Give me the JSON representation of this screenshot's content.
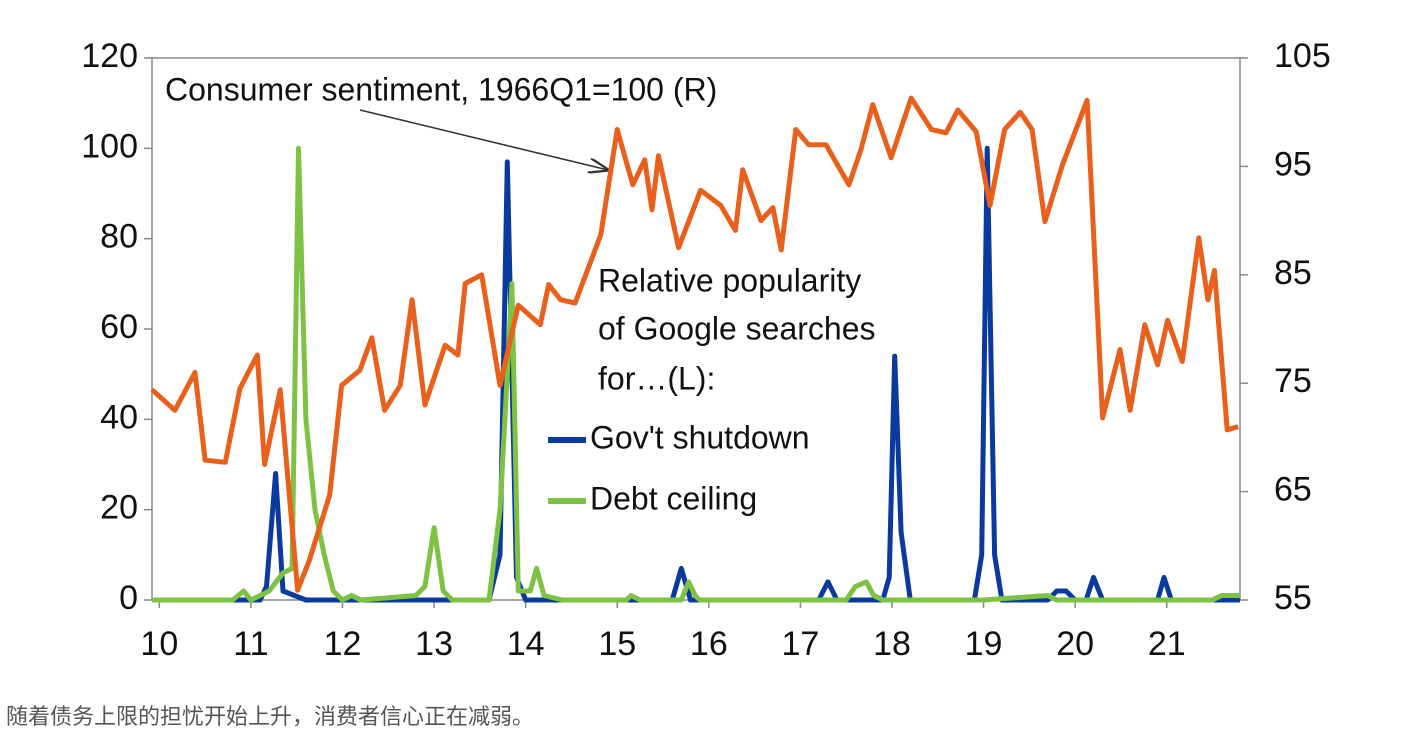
{
  "chart_data": {
    "type": "line",
    "annotations": [
      "Consumer sentiment, 1966Q1=100 (R)",
      "Relative popularity",
      "of Google searches",
      "for…(L):"
    ],
    "caption": "随着债务上限的担忧开始上升，消费者信心正在减弱。",
    "xlim": [
      9.92,
      21.8
    ],
    "xticks": [
      10,
      11,
      12,
      13,
      14,
      15,
      16,
      17,
      18,
      19,
      20,
      21
    ],
    "ylim": [
      0,
      120
    ],
    "yticks": [
      0,
      20,
      40,
      60,
      80,
      100,
      120
    ],
    "y2lim": [
      55,
      105
    ],
    "y2ticks": [
      55,
      65,
      75,
      85,
      95,
      105
    ],
    "series": [
      {
        "name": "Gov't shutdown",
        "color": "#0b3a9f",
        "x": [
          9.92,
          11.1,
          11.17,
          11.27,
          11.35,
          11.6,
          13.6,
          13.72,
          13.8,
          13.9,
          14.0,
          15.6,
          15.7,
          15.8,
          17.2,
          17.3,
          17.4,
          17.9,
          17.97,
          18.03,
          18.1,
          18.2,
          18.9,
          18.98,
          19.04,
          19.12,
          19.2,
          19.7,
          19.8,
          19.9,
          20.0,
          20.12,
          20.2,
          20.3,
          20.9,
          20.97,
          21.05,
          21.8
        ],
        "values": [
          0,
          0,
          3,
          28,
          2,
          0,
          0,
          10,
          97,
          5,
          0,
          0,
          7,
          0,
          0,
          4,
          0,
          0,
          5,
          54,
          15,
          0,
          0,
          10,
          100,
          10,
          0,
          0,
          2,
          2,
          0,
          0,
          5,
          0,
          0,
          5,
          0,
          0
        ]
      },
      {
        "name": "Debt ceiling",
        "color": "#7dc242",
        "x": [
          9.92,
          10.8,
          10.92,
          11.0,
          11.2,
          11.35,
          11.45,
          11.52,
          11.6,
          11.7,
          11.8,
          11.9,
          12.0,
          12.1,
          12.2,
          12.8,
          12.9,
          13.0,
          13.1,
          13.2,
          13.6,
          13.72,
          13.8,
          13.85,
          13.92,
          14.05,
          14.12,
          14.2,
          14.4,
          15.1,
          15.15,
          15.25,
          15.7,
          15.78,
          15.85,
          15.9,
          17.5,
          17.6,
          17.72,
          17.8,
          17.9,
          19.0,
          19.7,
          19.8,
          21.5,
          21.6,
          21.8
        ],
        "values": [
          0,
          0,
          2,
          0,
          2,
          6,
          7,
          100,
          40,
          20,
          10,
          2,
          0,
          1,
          0,
          1,
          3,
          16,
          2,
          0,
          0,
          20,
          50,
          70,
          2,
          2,
          7,
          1,
          0,
          0,
          1,
          0,
          0,
          4,
          1,
          0,
          0,
          3,
          4,
          1,
          0,
          0,
          1,
          0,
          0,
          1,
          1
        ]
      },
      {
        "name": "Consumer sentiment",
        "color": "#e8601c",
        "axis": "y2",
        "x": [
          9.92,
          10.17,
          10.39,
          10.5,
          10.72,
          10.88,
          11.07,
          11.15,
          11.32,
          11.51,
          11.64,
          11.86,
          11.99,
          12.19,
          12.32,
          12.46,
          12.63,
          12.76,
          12.9,
          13.12,
          13.26,
          13.34,
          13.52,
          13.72,
          13.92,
          14.16,
          14.25,
          14.38,
          14.54,
          14.82,
          15.0,
          15.17,
          15.3,
          15.38,
          15.45,
          15.67,
          15.91,
          16.13,
          16.29,
          16.37,
          16.57,
          16.7,
          16.79,
          16.95,
          17.09,
          17.28,
          17.53,
          17.66,
          17.79,
          17.99,
          18.21,
          18.43,
          18.59,
          18.72,
          18.92,
          19.07,
          19.23,
          19.4,
          19.53,
          19.67,
          19.86,
          20.13,
          20.3,
          20.49,
          20.6,
          20.76,
          20.9,
          21.01,
          21.17,
          21.35,
          21.45,
          21.52,
          21.66,
          21.78
        ],
        "values": [
          74.4,
          72.5,
          76,
          67.9,
          67.7,
          74.5,
          77.6,
          67.5,
          74.4,
          55.9,
          58.7,
          64.7,
          74.8,
          76.2,
          79.2,
          72.5,
          74.8,
          82.7,
          73,
          78.5,
          77.6,
          84.2,
          85,
          74.8,
          82.2,
          80.4,
          84.1,
          82.7,
          82.4,
          88.7,
          98.4,
          93.3,
          95.6,
          91,
          96,
          87.5,
          92.8,
          91.4,
          89.1,
          94.7,
          90,
          91.2,
          87.3,
          98.4,
          97,
          97,
          93.3,
          96.5,
          100.7,
          95.8,
          101.3,
          98.4,
          98.1,
          100.2,
          98.2,
          91.4,
          98.4,
          100,
          98.4,
          89.9,
          95.1,
          101.1,
          71.8,
          78.1,
          72.5,
          80.4,
          76.7,
          80.8,
          77,
          88.4,
          82.7,
          85.4,
          70.7,
          71
        ]
      }
    ]
  }
}
